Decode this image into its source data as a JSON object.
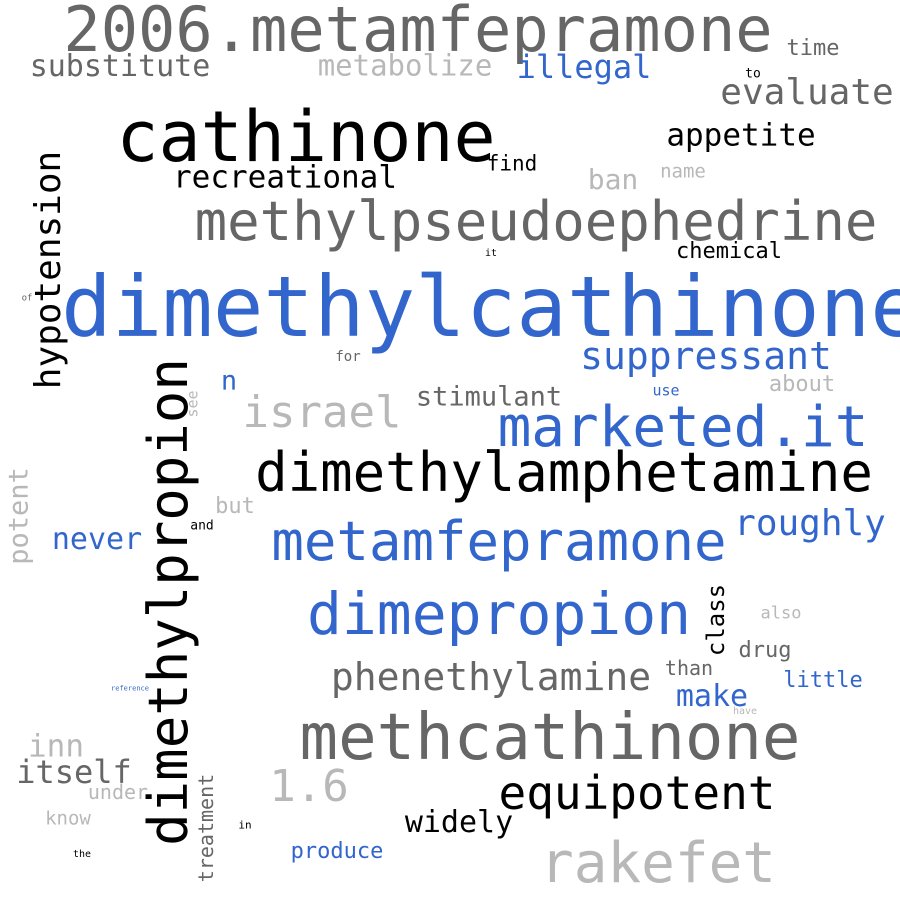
{
  "colors": {
    "background": "#ffffff",
    "black": "#000000",
    "dark_gray": "#666666",
    "light_gray": "#b8b8b8",
    "blue": "#3366cc"
  },
  "words": [
    {
      "text": "2006.metamfepramone",
      "color": "#666666",
      "orientation": "horizontal"
    },
    {
      "text": "substitute",
      "color": "#666666",
      "orientation": "horizontal"
    },
    {
      "text": "metabolize",
      "color": "#b8b8b8",
      "orientation": "horizontal"
    },
    {
      "text": "illegal",
      "color": "#3366cc",
      "orientation": "horizontal"
    },
    {
      "text": "time",
      "color": "#666666",
      "orientation": "horizontal"
    },
    {
      "text": "to",
      "color": "#000000",
      "orientation": "horizontal"
    },
    {
      "text": "evaluate",
      "color": "#666666",
      "orientation": "horizontal"
    },
    {
      "text": "cathinone",
      "color": "#000000",
      "orientation": "horizontal"
    },
    {
      "text": "appetite",
      "color": "#000000",
      "orientation": "horizontal"
    },
    {
      "text": "recreational",
      "color": "#000000",
      "orientation": "horizontal"
    },
    {
      "text": "find",
      "color": "#000000",
      "orientation": "horizontal"
    },
    {
      "text": "ban",
      "color": "#b8b8b8",
      "orientation": "horizontal"
    },
    {
      "text": "name",
      "color": "#b8b8b8",
      "orientation": "horizontal"
    },
    {
      "text": "hypotension",
      "color": "#000000",
      "orientation": "vertical"
    },
    {
      "text": "methylpseudoephedrine",
      "color": "#666666",
      "orientation": "horizontal"
    },
    {
      "text": "chemical",
      "color": "#000000",
      "orientation": "horizontal"
    },
    {
      "text": "it",
      "color": "#000000",
      "orientation": "horizontal"
    },
    {
      "text": "of",
      "color": "#666666",
      "orientation": "horizontal"
    },
    {
      "text": "dimethylcathinone",
      "color": "#3366cc",
      "orientation": "horizontal"
    },
    {
      "text": "for",
      "color": "#666666",
      "orientation": "horizontal"
    },
    {
      "text": "suppressant",
      "color": "#3366cc",
      "orientation": "horizontal"
    },
    {
      "text": "n",
      "color": "#3366cc",
      "orientation": "horizontal"
    },
    {
      "text": "about",
      "color": "#b8b8b8",
      "orientation": "horizontal"
    },
    {
      "text": "use",
      "color": "#3366cc",
      "orientation": "horizontal"
    },
    {
      "text": "see",
      "color": "#b8b8b8",
      "orientation": "vertical"
    },
    {
      "text": "stimulant",
      "color": "#666666",
      "orientation": "horizontal"
    },
    {
      "text": "israel",
      "color": "#b8b8b8",
      "orientation": "horizontal"
    },
    {
      "text": "marketed.it",
      "color": "#3366cc",
      "orientation": "horizontal"
    },
    {
      "text": "dimethylpropion",
      "color": "#000000",
      "orientation": "vertical"
    },
    {
      "text": "dimethylamphetamine",
      "color": "#000000",
      "orientation": "horizontal"
    },
    {
      "text": "potent",
      "color": "#b8b8b8",
      "orientation": "vertical"
    },
    {
      "text": "but",
      "color": "#b8b8b8",
      "orientation": "horizontal"
    },
    {
      "text": "and",
      "color": "#000000",
      "orientation": "horizontal"
    },
    {
      "text": "never",
      "color": "#3366cc",
      "orientation": "horizontal"
    },
    {
      "text": "metamfepramone",
      "color": "#3366cc",
      "orientation": "horizontal"
    },
    {
      "text": "roughly",
      "color": "#3366cc",
      "orientation": "horizontal"
    },
    {
      "text": "dimepropion",
      "color": "#3366cc",
      "orientation": "horizontal"
    },
    {
      "text": "class",
      "color": "#000000",
      "orientation": "vertical"
    },
    {
      "text": "also",
      "color": "#b8b8b8",
      "orientation": "horizontal"
    },
    {
      "text": "drug",
      "color": "#666666",
      "orientation": "horizontal"
    },
    {
      "text": "than",
      "color": "#666666",
      "orientation": "horizontal"
    },
    {
      "text": "phenethylamine",
      "color": "#666666",
      "orientation": "horizontal"
    },
    {
      "text": "little",
      "color": "#3366cc",
      "orientation": "horizontal"
    },
    {
      "text": "make",
      "color": "#3366cc",
      "orientation": "horizontal"
    },
    {
      "text": "reference",
      "color": "#3366cc",
      "orientation": "horizontal"
    },
    {
      "text": "have",
      "color": "#b8b8b8",
      "orientation": "horizontal"
    },
    {
      "text": "methcathinone",
      "color": "#666666",
      "orientation": "horizontal"
    },
    {
      "text": "inn",
      "color": "#b8b8b8",
      "orientation": "horizontal"
    },
    {
      "text": "itself",
      "color": "#666666",
      "orientation": "horizontal"
    },
    {
      "text": "1.6",
      "color": "#b8b8b8",
      "orientation": "horizontal"
    },
    {
      "text": "under",
      "color": "#b8b8b8",
      "orientation": "horizontal"
    },
    {
      "text": "treatment",
      "color": "#666666",
      "orientation": "vertical"
    },
    {
      "text": "equipotent",
      "color": "#000000",
      "orientation": "horizontal"
    },
    {
      "text": "know",
      "color": "#b8b8b8",
      "orientation": "horizontal"
    },
    {
      "text": "in",
      "color": "#000000",
      "orientation": "horizontal"
    },
    {
      "text": "widely",
      "color": "#000000",
      "orientation": "horizontal"
    },
    {
      "text": "the",
      "color": "#000000",
      "orientation": "horizontal"
    },
    {
      "text": "produce",
      "color": "#3366cc",
      "orientation": "horizontal"
    },
    {
      "text": "rakefet",
      "color": "#b8b8b8",
      "orientation": "horizontal"
    }
  ]
}
